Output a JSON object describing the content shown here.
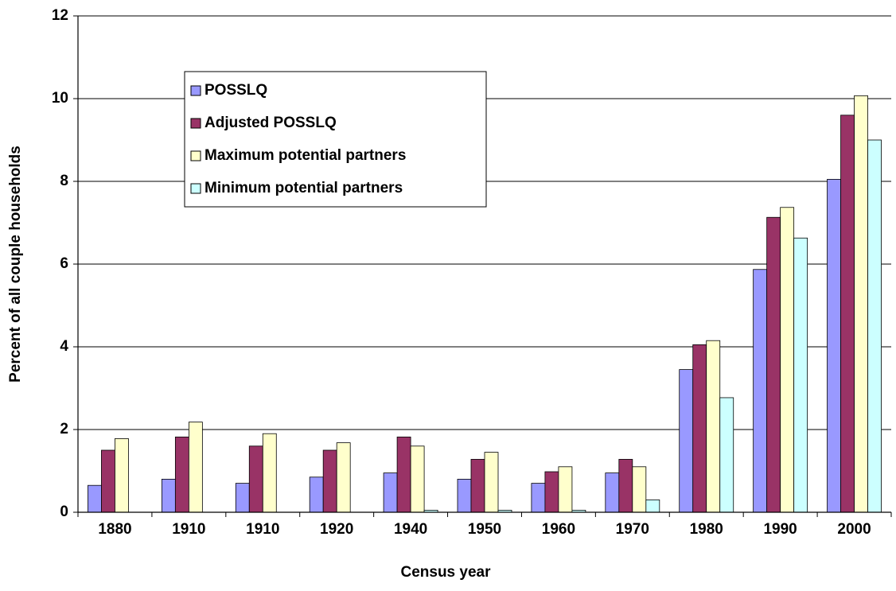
{
  "chart_data": {
    "type": "bar",
    "x_label": "Census year",
    "y_label": "Percent of all couple households",
    "categories": [
      "1880",
      "1910",
      "1910",
      "1920",
      "1940",
      "1950",
      "1960",
      "1970",
      "1980",
      "1990",
      "2000"
    ],
    "series": [
      {
        "name": "POSSLQ",
        "color": "#9999ff",
        "values": [
          0.65,
          0.8,
          0.7,
          0.85,
          0.95,
          0.8,
          0.7,
          0.95,
          3.45,
          5.87,
          8.05
        ]
      },
      {
        "name": "Adjusted POSSLQ",
        "color": "#993366",
        "values": [
          1.5,
          1.82,
          1.6,
          1.5,
          1.82,
          1.28,
          0.98,
          1.28,
          4.05,
          7.13,
          9.6
        ]
      },
      {
        "name": "Maximum potential partners",
        "color": "#ffffcc",
        "values": [
          1.78,
          2.18,
          1.9,
          1.68,
          1.6,
          1.45,
          1.1,
          1.1,
          4.15,
          7.37,
          10.07
        ]
      },
      {
        "name": "Minimum potential partners",
        "color": "#ccffff",
        "values": [
          0,
          0,
          0,
          0,
          0.05,
          0.05,
          0.05,
          0.3,
          2.77,
          6.63,
          9.0
        ]
      }
    ],
    "ylim": [
      0,
      12
    ],
    "yticks": [
      0,
      2,
      4,
      6,
      8,
      10,
      12
    ],
    "grid": true,
    "legend": "upper left"
  }
}
